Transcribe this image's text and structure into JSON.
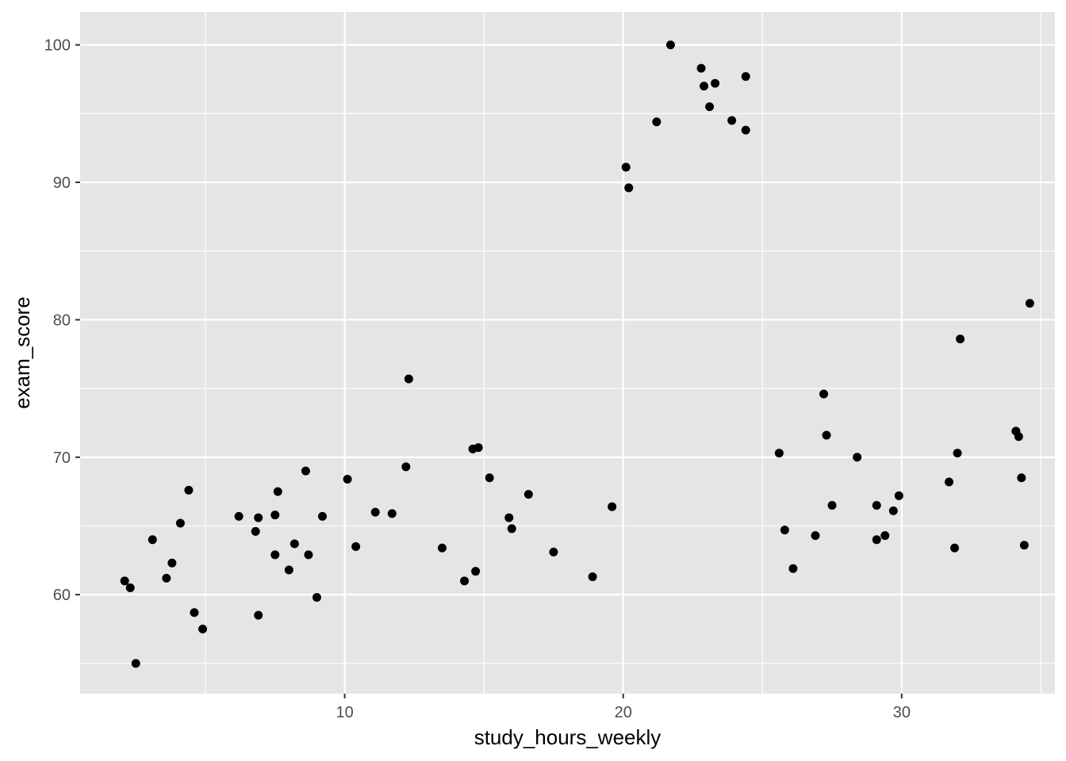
{
  "chart_data": {
    "type": "scatter",
    "title": "",
    "xlabel": "study_hours_weekly",
    "ylabel": "exam_score",
    "xlim": [
      0.5,
      35.5
    ],
    "ylim": [
      52.8,
      102.4
    ],
    "xticks": [
      10,
      20,
      30
    ],
    "yticks": [
      60,
      70,
      80,
      90,
      100
    ],
    "grid": true,
    "colors": {
      "panel": "#e5e5e5",
      "grid": "#ffffff",
      "point": "#000000",
      "tick_text": "#4d4d4d"
    },
    "points": [
      [
        2.1,
        61.0
      ],
      [
        2.3,
        60.5
      ],
      [
        2.5,
        55.0
      ],
      [
        3.1,
        64.0
      ],
      [
        3.6,
        61.2
      ],
      [
        3.8,
        62.3
      ],
      [
        4.1,
        65.2
      ],
      [
        4.4,
        67.6
      ],
      [
        4.6,
        58.7
      ],
      [
        4.9,
        57.5
      ],
      [
        6.2,
        65.7
      ],
      [
        6.8,
        64.6
      ],
      [
        6.9,
        65.6
      ],
      [
        6.9,
        58.5
      ],
      [
        7.5,
        65.8
      ],
      [
        7.5,
        62.9
      ],
      [
        7.6,
        67.5
      ],
      [
        8.0,
        61.8
      ],
      [
        8.2,
        63.7
      ],
      [
        8.6,
        69.0
      ],
      [
        8.7,
        62.9
      ],
      [
        9.0,
        59.8
      ],
      [
        9.2,
        65.7
      ],
      [
        10.1,
        68.4
      ],
      [
        10.4,
        63.5
      ],
      [
        11.1,
        66.0
      ],
      [
        11.7,
        65.9
      ],
      [
        12.2,
        69.3
      ],
      [
        12.3,
        75.7
      ],
      [
        13.5,
        63.4
      ],
      [
        14.3,
        61.0
      ],
      [
        14.6,
        70.6
      ],
      [
        14.7,
        61.7
      ],
      [
        14.8,
        70.7
      ],
      [
        15.2,
        68.5
      ],
      [
        15.9,
        65.6
      ],
      [
        16.0,
        64.8
      ],
      [
        16.6,
        67.3
      ],
      [
        17.5,
        63.1
      ],
      [
        18.9,
        61.3
      ],
      [
        19.6,
        66.4
      ],
      [
        20.1,
        91.1
      ],
      [
        20.2,
        89.6
      ],
      [
        21.2,
        94.4
      ],
      [
        21.7,
        100.0
      ],
      [
        22.8,
        98.3
      ],
      [
        22.9,
        97.0
      ],
      [
        23.1,
        95.5
      ],
      [
        23.3,
        97.2
      ],
      [
        23.9,
        94.5
      ],
      [
        24.4,
        97.7
      ],
      [
        24.4,
        93.8
      ],
      [
        25.6,
        70.3
      ],
      [
        25.8,
        64.7
      ],
      [
        26.1,
        61.9
      ],
      [
        26.9,
        64.3
      ],
      [
        27.2,
        74.6
      ],
      [
        27.3,
        71.6
      ],
      [
        27.5,
        66.5
      ],
      [
        28.4,
        70.0
      ],
      [
        29.1,
        66.5
      ],
      [
        29.1,
        64.0
      ],
      [
        29.4,
        64.3
      ],
      [
        29.7,
        66.1
      ],
      [
        29.9,
        67.2
      ],
      [
        31.7,
        68.2
      ],
      [
        31.9,
        63.4
      ],
      [
        32.0,
        70.3
      ],
      [
        32.1,
        78.6
      ],
      [
        34.1,
        71.9
      ],
      [
        34.2,
        71.5
      ],
      [
        34.3,
        68.5
      ],
      [
        34.4,
        63.6
      ],
      [
        34.6,
        81.2
      ]
    ]
  }
}
